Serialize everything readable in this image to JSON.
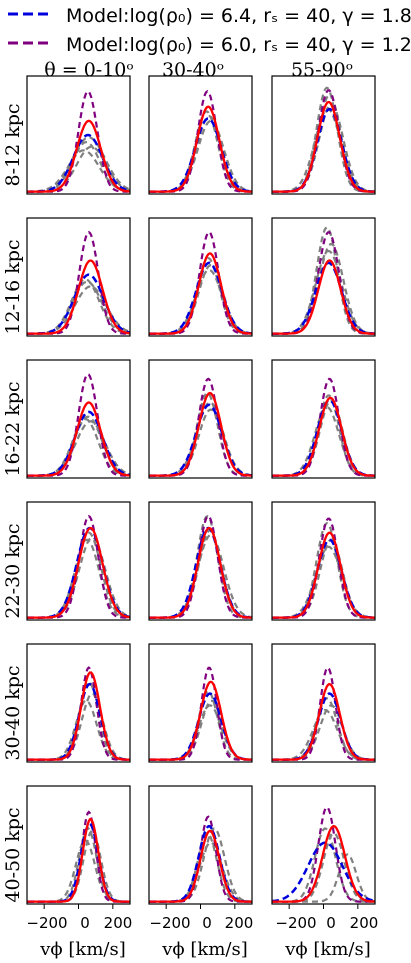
{
  "legend": {
    "entries": [
      {
        "series": "model_1",
        "label": "Model:log(ρ₀) = 6.4, rₛ = 40, γ = 1.8",
        "color": "#0000dd",
        "style": "dashed"
      },
      {
        "series": "model_2",
        "label": "Model:log(ρ₀) = 6.0, rₛ = 40, γ = 1.2",
        "color": "#800080",
        "style": "dashed"
      }
    ]
  },
  "column_titles": [
    "θ = 0-10ᵒ",
    "30-40ᵒ",
    "55-90ᵒ"
  ],
  "row_labels": [
    "8-12 kpc",
    "12-16 kpc",
    "16-22 kpc",
    "22-30 kpc",
    "30-40 kpc",
    "40-50 kpc"
  ],
  "xlabel": "vϕ [km/s]",
  "xticks": [
    "−200",
    "0",
    "200"
  ],
  "colors": {
    "model_1": "#0000dd",
    "model_2": "#800080",
    "red": "#ff0000",
    "gray": "#808080"
  },
  "chart_data": {
    "type": "line",
    "layout": "grid 6 rows x 3 columns",
    "xlim": [
      -300,
      300
    ],
    "ylim": [
      0,
      1
    ],
    "note_units": "vertical axis unlabeled; y values are relative heights",
    "panels": [
      {
        "row": 0,
        "col": 0,
        "curves": {
          "red": {
            "mu": 60,
            "w": 70,
            "h": 0.6
          },
          "model_1": {
            "mu": 55,
            "w": 85,
            "h": 0.48
          },
          "model_2": {
            "mu": 55,
            "w": 55,
            "h": 0.85
          },
          "gray": [
            {
              "mu": 45,
              "w": 80,
              "h": 0.42
            },
            {
              "mu": 60,
              "w": 95,
              "h": 0.46
            },
            {
              "mu": 75,
              "w": 85,
              "h": 0.38
            },
            {
              "mu": 30,
              "w": 90,
              "h": 0.35
            }
          ]
        }
      },
      {
        "row": 0,
        "col": 1,
        "curves": {
          "red": {
            "mu": 45,
            "w": 65,
            "h": 0.72
          },
          "model_1": {
            "mu": 45,
            "w": 75,
            "h": 0.62
          },
          "model_2": {
            "mu": 40,
            "w": 55,
            "h": 0.85
          },
          "gray": [
            {
              "mu": 35,
              "w": 65,
              "h": 0.68
            },
            {
              "mu": 50,
              "w": 70,
              "h": 0.64
            },
            {
              "mu": 60,
              "w": 75,
              "h": 0.6
            }
          ]
        }
      },
      {
        "row": 0,
        "col": 2,
        "curves": {
          "red": {
            "mu": 30,
            "w": 65,
            "h": 0.76
          },
          "model_1": {
            "mu": 35,
            "w": 70,
            "h": 0.7
          },
          "model_2": {
            "mu": 30,
            "w": 60,
            "h": 0.86
          },
          "gray": [
            {
              "mu": 20,
              "w": 60,
              "h": 0.88
            },
            {
              "mu": 35,
              "w": 65,
              "h": 0.82
            },
            {
              "mu": 45,
              "w": 70,
              "h": 0.74
            },
            {
              "mu": 25,
              "w": 75,
              "h": 0.7
            }
          ]
        }
      },
      {
        "row": 1,
        "col": 0,
        "curves": {
          "red": {
            "mu": 70,
            "w": 70,
            "h": 0.62
          },
          "model_1": {
            "mu": 60,
            "w": 85,
            "h": 0.5
          },
          "model_2": {
            "mu": 60,
            "w": 55,
            "h": 0.86
          },
          "gray": [
            {
              "mu": 50,
              "w": 85,
              "h": 0.44
            },
            {
              "mu": 70,
              "w": 90,
              "h": 0.4
            },
            {
              "mu": 40,
              "w": 80,
              "h": 0.46
            }
          ]
        }
      },
      {
        "row": 1,
        "col": 1,
        "curves": {
          "red": {
            "mu": 55,
            "w": 65,
            "h": 0.68
          },
          "model_1": {
            "mu": 50,
            "w": 75,
            "h": 0.6
          },
          "model_2": {
            "mu": 50,
            "w": 55,
            "h": 0.86
          },
          "gray": [
            {
              "mu": 45,
              "w": 65,
              "h": 0.64
            },
            {
              "mu": 60,
              "w": 70,
              "h": 0.58
            },
            {
              "mu": 50,
              "w": 75,
              "h": 0.54
            }
          ]
        }
      },
      {
        "row": 1,
        "col": 2,
        "curves": {
          "red": {
            "mu": 35,
            "w": 65,
            "h": 0.62
          },
          "model_1": {
            "mu": 30,
            "w": 75,
            "h": 0.6
          },
          "model_2": {
            "mu": 30,
            "w": 60,
            "h": 0.86
          },
          "gray": [
            {
              "mu": 20,
              "w": 60,
              "h": 0.9
            },
            {
              "mu": 45,
              "w": 70,
              "h": 0.76
            },
            {
              "mu": 30,
              "w": 75,
              "h": 0.7
            }
          ]
        }
      },
      {
        "row": 2,
        "col": 0,
        "curves": {
          "red": {
            "mu": 60,
            "w": 70,
            "h": 0.62
          },
          "model_1": {
            "mu": 60,
            "w": 80,
            "h": 0.54
          },
          "model_2": {
            "mu": 55,
            "w": 55,
            "h": 0.86
          },
          "gray": [
            {
              "mu": 55,
              "w": 80,
              "h": 0.5
            },
            {
              "mu": 70,
              "w": 85,
              "h": 0.46
            },
            {
              "mu": 40,
              "w": 75,
              "h": 0.48
            }
          ]
        }
      },
      {
        "row": 2,
        "col": 1,
        "curves": {
          "red": {
            "mu": 55,
            "w": 65,
            "h": 0.7
          },
          "model_1": {
            "mu": 50,
            "w": 75,
            "h": 0.6
          },
          "model_2": {
            "mu": 45,
            "w": 55,
            "h": 0.82
          },
          "gray": [
            {
              "mu": 40,
              "w": 60,
              "h": 0.7
            },
            {
              "mu": 60,
              "w": 70,
              "h": 0.56
            },
            {
              "mu": 55,
              "w": 75,
              "h": 0.62
            }
          ]
        }
      },
      {
        "row": 2,
        "col": 2,
        "curves": {
          "red": {
            "mu": 40,
            "w": 65,
            "h": 0.66
          },
          "model_1": {
            "mu": 35,
            "w": 70,
            "h": 0.64
          },
          "model_2": {
            "mu": 35,
            "w": 55,
            "h": 0.82
          },
          "gray": [
            {
              "mu": 30,
              "w": 60,
              "h": 0.68
            },
            {
              "mu": 45,
              "w": 65,
              "h": 0.64
            },
            {
              "mu": 20,
              "w": 70,
              "h": 0.58
            }
          ]
        }
      },
      {
        "row": 3,
        "col": 0,
        "curves": {
          "red": {
            "mu": 70,
            "w": 70,
            "h": 0.76
          },
          "model_1": {
            "mu": 65,
            "w": 75,
            "h": 0.76
          },
          "model_2": {
            "mu": 60,
            "w": 55,
            "h": 0.86
          },
          "gray": [
            {
              "mu": 60,
              "w": 70,
              "h": 0.72
            },
            {
              "mu": 80,
              "w": 75,
              "h": 0.68
            },
            {
              "mu": 50,
              "w": 70,
              "h": 0.66
            }
          ]
        }
      },
      {
        "row": 3,
        "col": 1,
        "curves": {
          "red": {
            "mu": 50,
            "w": 65,
            "h": 0.76
          },
          "model_1": {
            "mu": 45,
            "w": 70,
            "h": 0.76
          },
          "model_2": {
            "mu": 45,
            "w": 55,
            "h": 0.86
          },
          "gray": [
            {
              "mu": 40,
              "w": 60,
              "h": 0.86
            },
            {
              "mu": 55,
              "w": 65,
              "h": 0.74
            },
            {
              "mu": 60,
              "w": 75,
              "h": 0.7
            }
          ]
        }
      },
      {
        "row": 3,
        "col": 2,
        "curves": {
          "red": {
            "mu": 35,
            "w": 65,
            "h": 0.72
          },
          "model_1": {
            "mu": 35,
            "w": 70,
            "h": 0.66
          },
          "model_2": {
            "mu": 30,
            "w": 55,
            "h": 0.84
          },
          "gray": [
            {
              "mu": 20,
              "w": 60,
              "h": 0.8
            },
            {
              "mu": 45,
              "w": 65,
              "h": 0.66
            },
            {
              "mu": 30,
              "w": 75,
              "h": 0.6
            }
          ]
        }
      },
      {
        "row": 4,
        "col": 0,
        "curves": {
          "red": {
            "mu": 70,
            "w": 55,
            "h": 0.74
          },
          "model_1": {
            "mu": 65,
            "w": 60,
            "h": 0.64
          },
          "model_2": {
            "mu": 60,
            "w": 45,
            "h": 0.78
          },
          "gray": [
            {
              "mu": 60,
              "w": 55,
              "h": 0.66
            },
            {
              "mu": 80,
              "w": 60,
              "h": 0.56
            },
            {
              "mu": 45,
              "w": 60,
              "h": 0.5
            }
          ]
        }
      },
      {
        "row": 4,
        "col": 1,
        "curves": {
          "red": {
            "mu": 60,
            "w": 60,
            "h": 0.66
          },
          "model_1": {
            "mu": 55,
            "w": 65,
            "h": 0.56
          },
          "model_2": {
            "mu": 50,
            "w": 45,
            "h": 0.78
          },
          "gray": [
            {
              "mu": 45,
              "w": 55,
              "h": 0.58
            },
            {
              "mu": 65,
              "w": 60,
              "h": 0.5
            },
            {
              "mu": 55,
              "w": 65,
              "h": 0.46
            }
          ]
        }
      },
      {
        "row": 4,
        "col": 2,
        "curves": {
          "red": {
            "mu": 35,
            "w": 60,
            "h": 0.64
          },
          "model_1": {
            "mu": 35,
            "w": 65,
            "h": 0.56
          },
          "model_2": {
            "mu": 25,
            "w": 45,
            "h": 0.78
          },
          "gray": [
            {
              "mu": 20,
              "w": 60,
              "h": 0.52
            },
            {
              "mu": 45,
              "w": 65,
              "h": 0.46
            },
            {
              "mu": 10,
              "w": 70,
              "h": 0.42
            }
          ]
        }
      },
      {
        "row": 5,
        "col": 0,
        "curves": {
          "red": {
            "mu": 70,
            "w": 45,
            "h": 0.7
          },
          "model_1": {
            "mu": 65,
            "w": 50,
            "h": 0.66
          },
          "model_2": {
            "mu": 60,
            "w": 40,
            "h": 0.76
          },
          "gray": [
            {
              "mu": 55,
              "w": 50,
              "h": 0.62
            },
            {
              "mu": 80,
              "w": 50,
              "h": 0.6
            },
            {
              "mu": 40,
              "w": 55,
              "h": 0.52
            }
          ]
        }
      },
      {
        "row": 5,
        "col": 1,
        "curves": {
          "red": {
            "mu": 55,
            "w": 55,
            "h": 0.6
          },
          "model_1": {
            "mu": 50,
            "w": 60,
            "h": 0.64
          },
          "model_2": {
            "mu": 45,
            "w": 45,
            "h": 0.72
          },
          "gray": [
            {
              "mu": 40,
              "w": 55,
              "h": 0.58
            },
            {
              "mu": 80,
              "w": 60,
              "h": 0.62
            },
            {
              "mu": 60,
              "w": 65,
              "h": 0.5
            }
          ]
        }
      },
      {
        "row": 5,
        "col": 2,
        "curves": {
          "red": {
            "mu": 60,
            "w": 65,
            "h": 0.64
          },
          "model_1": {
            "mu": 10,
            "w": 100,
            "h": 0.5
          },
          "model_2": {
            "mu": 20,
            "w": 50,
            "h": 0.8
          },
          "gray": [
            {
              "mu": 10,
              "w": 60,
              "h": 0.62
            },
            {
              "mu": 60,
              "w": 60,
              "h": 0.58
            },
            {
              "mu": 140,
              "w": 50,
              "h": 0.4
            }
          ]
        }
      }
    ]
  }
}
